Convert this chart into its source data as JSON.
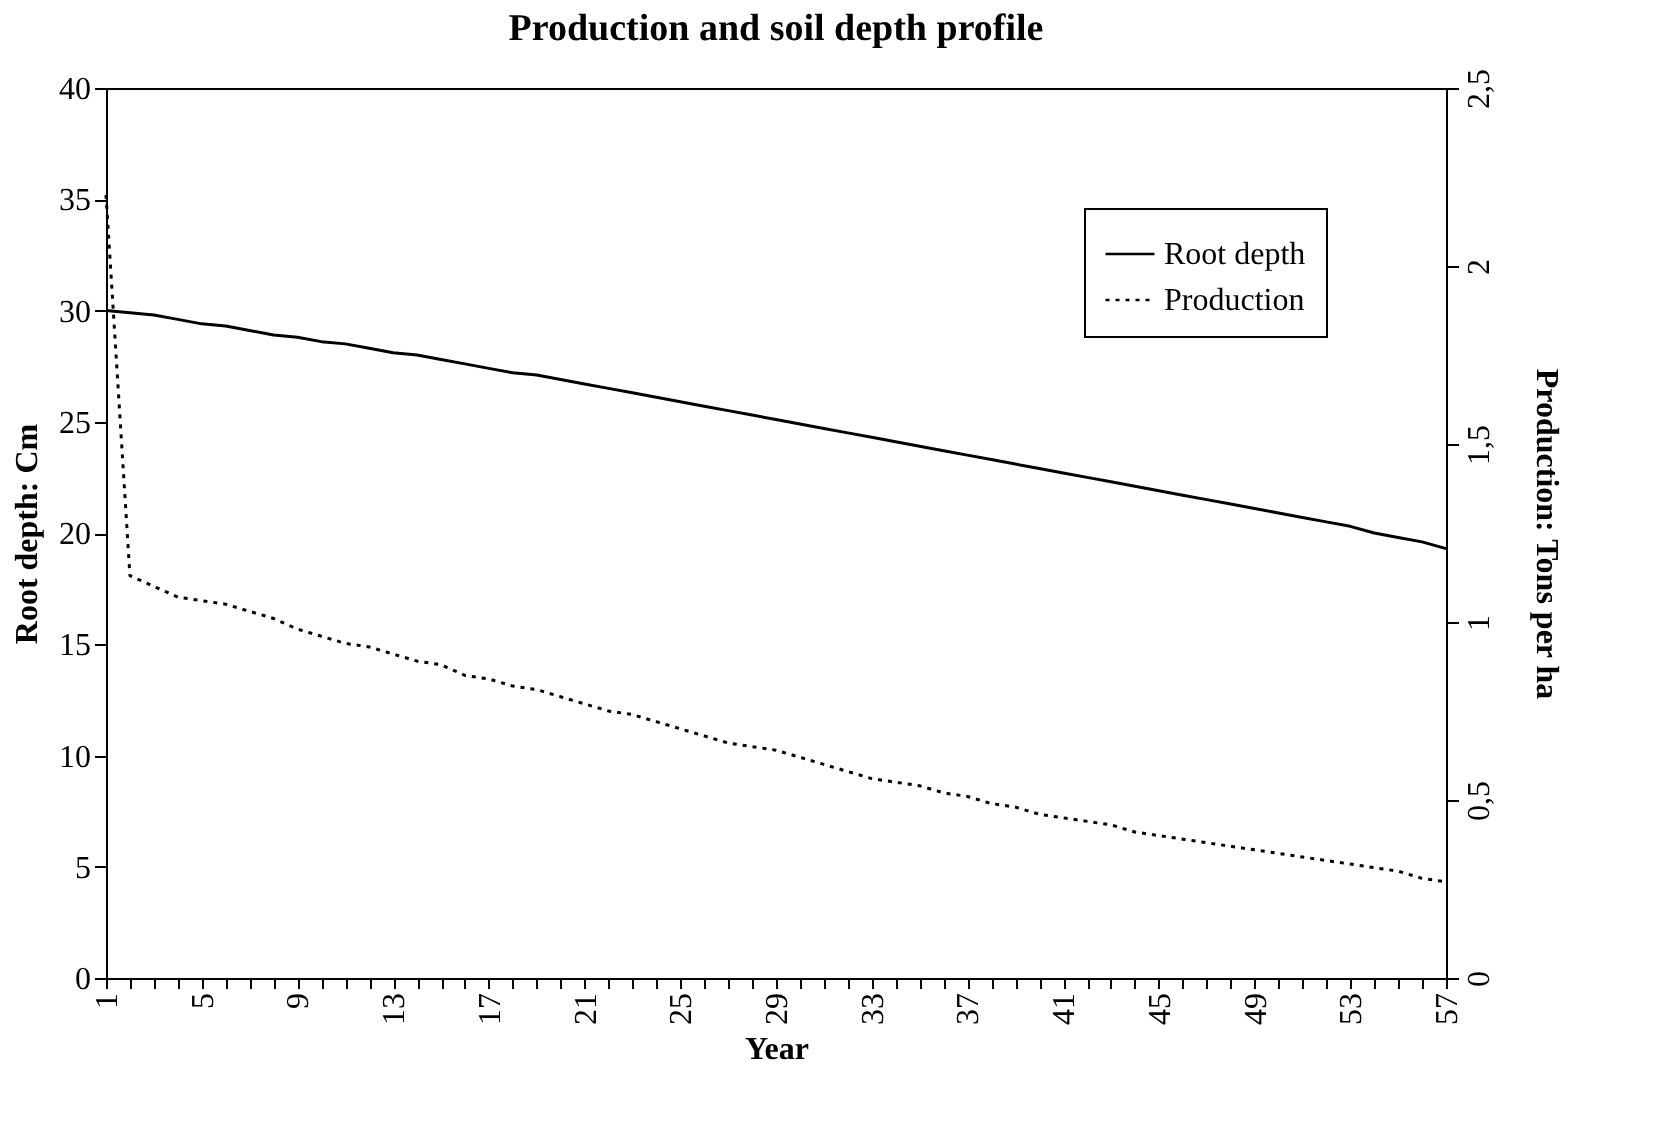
{
  "chart_data": {
    "type": "line",
    "title": "Production and soil depth profile",
    "xlabel": "Year",
    "ylabel": "Root depth: Cm",
    "y2label": "Production: Tons per ha",
    "categories": [
      "1",
      null,
      null,
      null,
      "5",
      null,
      null,
      null,
      "9",
      null,
      null,
      null,
      "13",
      null,
      null,
      null,
      "17",
      null,
      null,
      null,
      "21",
      null,
      null,
      null,
      "25",
      null,
      null,
      null,
      "29",
      null,
      null,
      null,
      "33",
      null,
      null,
      null,
      "37",
      null,
      null,
      null,
      "41",
      null,
      null,
      null,
      "45",
      null,
      null,
      null,
      "49",
      null,
      null,
      null,
      "53",
      null,
      null,
      null,
      "57"
    ],
    "series": [
      {
        "name": "Root depth",
        "color": "#000000",
        "line_style": "solid",
        "values": [
          30.0,
          29.9,
          29.8,
          29.6,
          29.4,
          29.3,
          29.1,
          28.9,
          28.8,
          28.6,
          28.5,
          28.3,
          28.1,
          28.0,
          27.8,
          27.6,
          27.4,
          27.2,
          27.1,
          26.9,
          26.7,
          26.5,
          26.3,
          26.1,
          25.9,
          25.7,
          25.5,
          25.3,
          25.1,
          24.9,
          24.7,
          24.5,
          24.3,
          24.1,
          23.9,
          23.7,
          23.5,
          23.3,
          23.1,
          22.9,
          22.7,
          22.5,
          22.3,
          22.1,
          21.9,
          21.7,
          21.5,
          21.3,
          21.1,
          20.9,
          20.7,
          20.5,
          20.3,
          20.0,
          19.8,
          19.6,
          19.3
        ]
      },
      {
        "name": "Production",
        "color": "#000000",
        "line_style": "dotted",
        "axis": "y2",
        "values": [
          2.2,
          1.13,
          1.1,
          1.07,
          1.06,
          1.05,
          1.03,
          1.01,
          0.98,
          0.96,
          0.94,
          0.93,
          0.91,
          0.89,
          0.88,
          0.85,
          0.84,
          0.82,
          0.81,
          0.79,
          0.77,
          0.75,
          0.74,
          0.72,
          0.7,
          0.68,
          0.66,
          0.65,
          0.64,
          0.62,
          0.6,
          0.58,
          0.56,
          0.55,
          0.54,
          0.52,
          0.51,
          0.49,
          0.48,
          0.46,
          0.45,
          0.44,
          0.43,
          0.41,
          0.4,
          0.39,
          0.38,
          0.37,
          0.36,
          0.35,
          0.34,
          0.33,
          0.32,
          0.31,
          0.3,
          0.28,
          0.27
        ]
      }
    ],
    "ylim": [
      0,
      40
    ],
    "yticks": [
      0,
      5,
      10,
      15,
      20,
      25,
      30,
      35,
      40
    ],
    "y2lim": [
      0,
      2.5
    ],
    "y2ticks": [
      0,
      {
        "value": 0.5,
        "label": "0,5"
      },
      1,
      {
        "value": 1.5,
        "label": "1,5"
      },
      2,
      {
        "value": 2.5,
        "label": "2,5"
      }
    ],
    "grid": false,
    "legend": "top right",
    "marker": "none"
  }
}
